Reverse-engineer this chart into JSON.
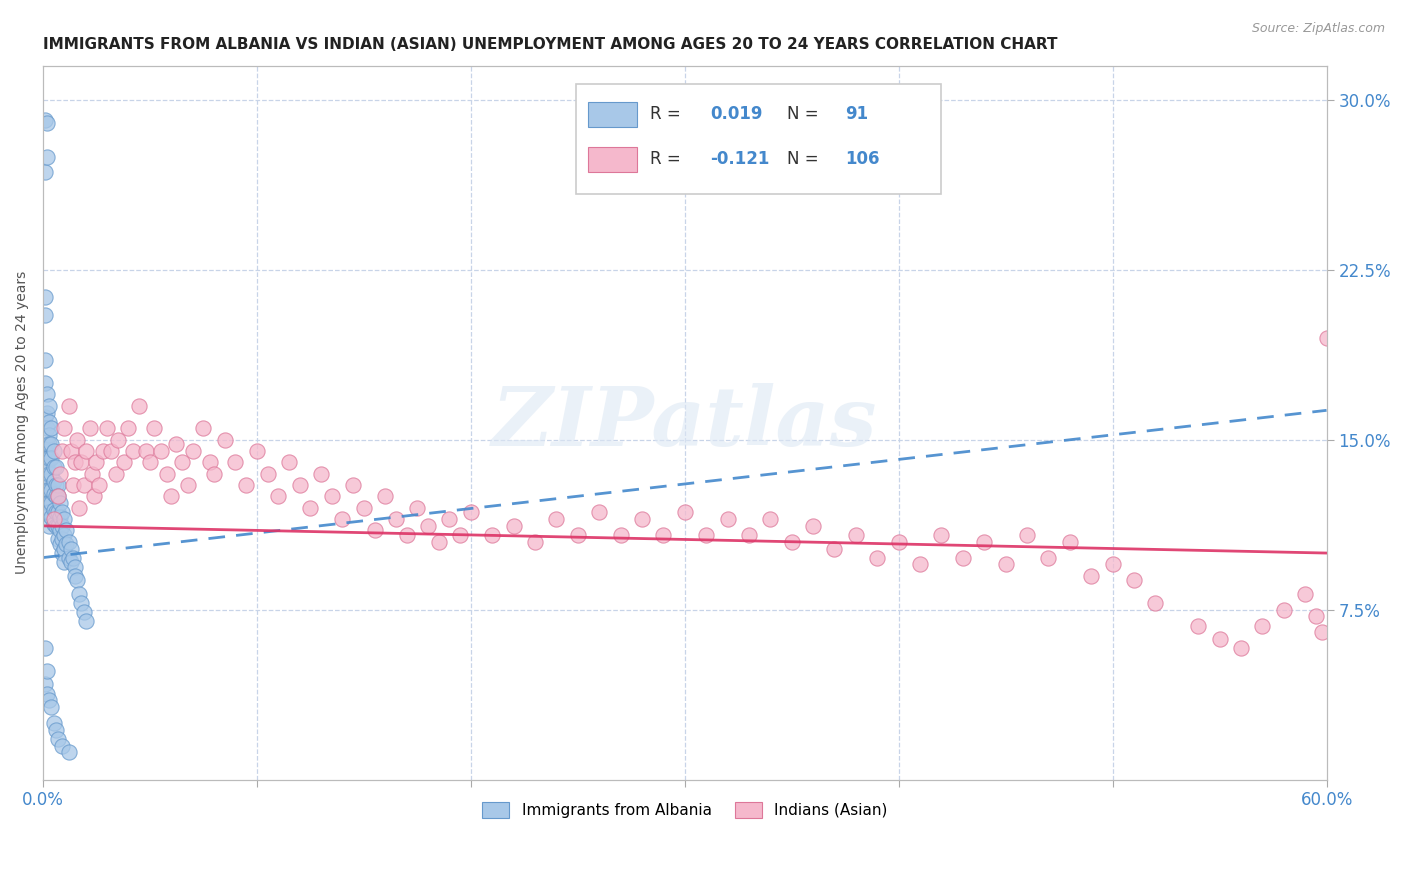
{
  "title": "IMMIGRANTS FROM ALBANIA VS INDIAN (ASIAN) UNEMPLOYMENT AMONG AGES 20 TO 24 YEARS CORRELATION CHART",
  "source": "Source: ZipAtlas.com",
  "ylabel": "Unemployment Among Ages 20 to 24 years",
  "xlim": [
    0.0,
    0.6
  ],
  "ylim": [
    0.0,
    0.315
  ],
  "yticks_right": [
    0.075,
    0.15,
    0.225,
    0.3
  ],
  "yticklabels_right": [
    "7.5%",
    "15.0%",
    "22.5%",
    "30.0%"
  ],
  "legend1_R": "0.019",
  "legend1_N": "91",
  "legend2_R": "-0.121",
  "legend2_N": "106",
  "albania_color": "#a8c8e8",
  "albania_edge": "#6699cc",
  "albania_trend_color": "#4488cc",
  "indian_color": "#f5b8cc",
  "indian_edge": "#dd7799",
  "indian_trend_color": "#dd3366",
  "background_color": "#ffffff",
  "grid_color": "#c8d4e8",
  "watermark": "ZIPatlas",
  "alb_trend_x0": 0.0,
  "alb_trend_y0": 0.098,
  "alb_trend_x1": 0.6,
  "alb_trend_y1": 0.163,
  "ind_trend_x0": 0.0,
  "ind_trend_y0": 0.112,
  "ind_trend_x1": 0.6,
  "ind_trend_y1": 0.1,
  "albania_scatter_x": [
    0.001,
    0.001,
    0.001,
    0.001,
    0.001,
    0.001,
    0.001,
    0.001,
    0.001,
    0.002,
    0.002,
    0.002,
    0.002,
    0.002,
    0.002,
    0.002,
    0.002,
    0.002,
    0.002,
    0.002,
    0.002,
    0.003,
    0.003,
    0.003,
    0.003,
    0.003,
    0.003,
    0.003,
    0.003,
    0.003,
    0.003,
    0.004,
    0.004,
    0.004,
    0.004,
    0.004,
    0.004,
    0.004,
    0.005,
    0.005,
    0.005,
    0.005,
    0.005,
    0.005,
    0.006,
    0.006,
    0.006,
    0.006,
    0.006,
    0.007,
    0.007,
    0.007,
    0.007,
    0.007,
    0.008,
    0.008,
    0.008,
    0.008,
    0.009,
    0.009,
    0.009,
    0.009,
    0.01,
    0.01,
    0.01,
    0.01,
    0.011,
    0.011,
    0.012,
    0.012,
    0.013,
    0.013,
    0.014,
    0.015,
    0.015,
    0.016,
    0.017,
    0.018,
    0.019,
    0.02,
    0.001,
    0.001,
    0.002,
    0.002,
    0.003,
    0.004,
    0.005,
    0.006,
    0.007,
    0.009,
    0.012
  ],
  "albania_scatter_y": [
    0.291,
    0.268,
    0.213,
    0.205,
    0.185,
    0.175,
    0.16,
    0.145,
    0.135,
    0.29,
    0.275,
    0.17,
    0.162,
    0.155,
    0.148,
    0.142,
    0.138,
    0.132,
    0.128,
    0.122,
    0.118,
    0.165,
    0.158,
    0.152,
    0.148,
    0.142,
    0.135,
    0.128,
    0.122,
    0.118,
    0.112,
    0.155,
    0.148,
    0.142,
    0.135,
    0.128,
    0.122,
    0.116,
    0.145,
    0.138,
    0.132,
    0.126,
    0.119,
    0.113,
    0.138,
    0.13,
    0.125,
    0.118,
    0.112,
    0.13,
    0.125,
    0.118,
    0.112,
    0.106,
    0.122,
    0.116,
    0.11,
    0.104,
    0.118,
    0.112,
    0.106,
    0.1,
    0.115,
    0.108,
    0.102,
    0.096,
    0.11,
    0.104,
    0.105,
    0.098,
    0.102,
    0.096,
    0.098,
    0.094,
    0.09,
    0.088,
    0.082,
    0.078,
    0.074,
    0.07,
    0.058,
    0.042,
    0.048,
    0.038,
    0.035,
    0.032,
    0.025,
    0.022,
    0.018,
    0.015,
    0.012
  ],
  "indian_scatter_x": [
    0.005,
    0.007,
    0.008,
    0.009,
    0.01,
    0.012,
    0.013,
    0.014,
    0.015,
    0.016,
    0.017,
    0.018,
    0.019,
    0.02,
    0.022,
    0.023,
    0.024,
    0.025,
    0.026,
    0.028,
    0.03,
    0.032,
    0.034,
    0.035,
    0.038,
    0.04,
    0.042,
    0.045,
    0.048,
    0.05,
    0.052,
    0.055,
    0.058,
    0.06,
    0.062,
    0.065,
    0.068,
    0.07,
    0.075,
    0.078,
    0.08,
    0.085,
    0.09,
    0.095,
    0.1,
    0.105,
    0.11,
    0.115,
    0.12,
    0.125,
    0.13,
    0.135,
    0.14,
    0.145,
    0.15,
    0.155,
    0.16,
    0.165,
    0.17,
    0.175,
    0.18,
    0.185,
    0.19,
    0.195,
    0.2,
    0.21,
    0.22,
    0.23,
    0.24,
    0.25,
    0.26,
    0.27,
    0.28,
    0.29,
    0.3,
    0.31,
    0.32,
    0.33,
    0.34,
    0.35,
    0.36,
    0.37,
    0.38,
    0.39,
    0.4,
    0.41,
    0.42,
    0.43,
    0.44,
    0.45,
    0.46,
    0.47,
    0.48,
    0.49,
    0.5,
    0.51,
    0.52,
    0.54,
    0.55,
    0.56,
    0.57,
    0.58,
    0.59,
    0.595,
    0.598,
    0.6
  ],
  "indian_scatter_y": [
    0.115,
    0.125,
    0.135,
    0.145,
    0.155,
    0.165,
    0.145,
    0.13,
    0.14,
    0.15,
    0.12,
    0.14,
    0.13,
    0.145,
    0.155,
    0.135,
    0.125,
    0.14,
    0.13,
    0.145,
    0.155,
    0.145,
    0.135,
    0.15,
    0.14,
    0.155,
    0.145,
    0.165,
    0.145,
    0.14,
    0.155,
    0.145,
    0.135,
    0.125,
    0.148,
    0.14,
    0.13,
    0.145,
    0.155,
    0.14,
    0.135,
    0.15,
    0.14,
    0.13,
    0.145,
    0.135,
    0.125,
    0.14,
    0.13,
    0.12,
    0.135,
    0.125,
    0.115,
    0.13,
    0.12,
    0.11,
    0.125,
    0.115,
    0.108,
    0.12,
    0.112,
    0.105,
    0.115,
    0.108,
    0.118,
    0.108,
    0.112,
    0.105,
    0.115,
    0.108,
    0.118,
    0.108,
    0.115,
    0.108,
    0.118,
    0.108,
    0.115,
    0.108,
    0.115,
    0.105,
    0.112,
    0.102,
    0.108,
    0.098,
    0.105,
    0.095,
    0.108,
    0.098,
    0.105,
    0.095,
    0.108,
    0.098,
    0.105,
    0.09,
    0.095,
    0.088,
    0.078,
    0.068,
    0.062,
    0.058,
    0.068,
    0.075,
    0.082,
    0.072,
    0.065,
    0.195
  ]
}
